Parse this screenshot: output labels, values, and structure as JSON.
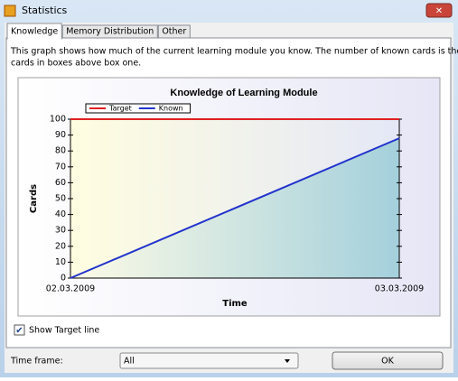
{
  "window": {
    "title": "Statistics",
    "tabs": [
      "Knowledge",
      "Memory Distribution",
      "Other"
    ],
    "description": [
      "This graph shows how much of the current learning module you know. The number of known cards is the number of",
      "cards in boxes above box one."
    ],
    "show_target_line": "Show Target line",
    "time_frame_label": "Time frame:",
    "time_frame_value": "All",
    "ok": "OK"
  },
  "chart_data": {
    "type": "line",
    "title": "Knowledge of Learning Module",
    "x": [
      "02.03.2009",
      "03.03.2009"
    ],
    "x_label": "Time",
    "y_label": "Cards",
    "series": [
      {
        "name": "Target",
        "color": "#e02020",
        "values": [
          100,
          100
        ]
      },
      {
        "name": "Known",
        "color": "#2233cc",
        "values": [
          0,
          88
        ]
      }
    ],
    "ylim": [
      0,
      100
    ],
    "yticks": [
      0,
      10,
      20,
      30,
      40,
      50,
      60,
      70,
      80,
      90,
      100
    ],
    "legend": "top-left"
  }
}
